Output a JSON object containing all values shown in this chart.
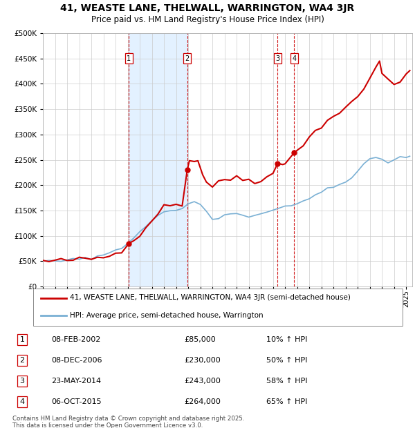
{
  "title": "41, WEASTE LANE, THELWALL, WARRINGTON, WA4 3JR",
  "subtitle": "Price paid vs. HM Land Registry's House Price Index (HPI)",
  "legend_label_red": "41, WEASTE LANE, THELWALL, WARRINGTON, WA4 3JR (semi-detached house)",
  "legend_label_blue": "HPI: Average price, semi-detached house, Warrington",
  "footer": "Contains HM Land Registry data © Crown copyright and database right 2025.\nThis data is licensed under the Open Government Licence v3.0.",
  "transactions": [
    {
      "num": 1,
      "date": "08-FEB-2002",
      "price": 85000,
      "pct": "10%",
      "year": 2002.1
    },
    {
      "num": 2,
      "date": "08-DEC-2006",
      "price": 230000,
      "pct": "50%",
      "year": 2006.92
    },
    {
      "num": 3,
      "date": "23-MAY-2014",
      "price": 243000,
      "pct": "58%",
      "year": 2014.39
    },
    {
      "num": 4,
      "date": "06-OCT-2015",
      "price": 264000,
      "pct": "65%",
      "year": 2015.75
    }
  ],
  "hpi_color": "#7ab0d4",
  "price_color": "#cc0000",
  "bg_color": "#ffffff",
  "grid_color": "#cccccc",
  "shaded_color": "#ddeeff",
  "ylim": [
    0,
    500000
  ],
  "yticks": [
    0,
    50000,
    100000,
    150000,
    200000,
    250000,
    300000,
    350000,
    400000,
    450000,
    500000
  ],
  "xlim_start": 1995.0,
  "xlim_end": 2025.5
}
